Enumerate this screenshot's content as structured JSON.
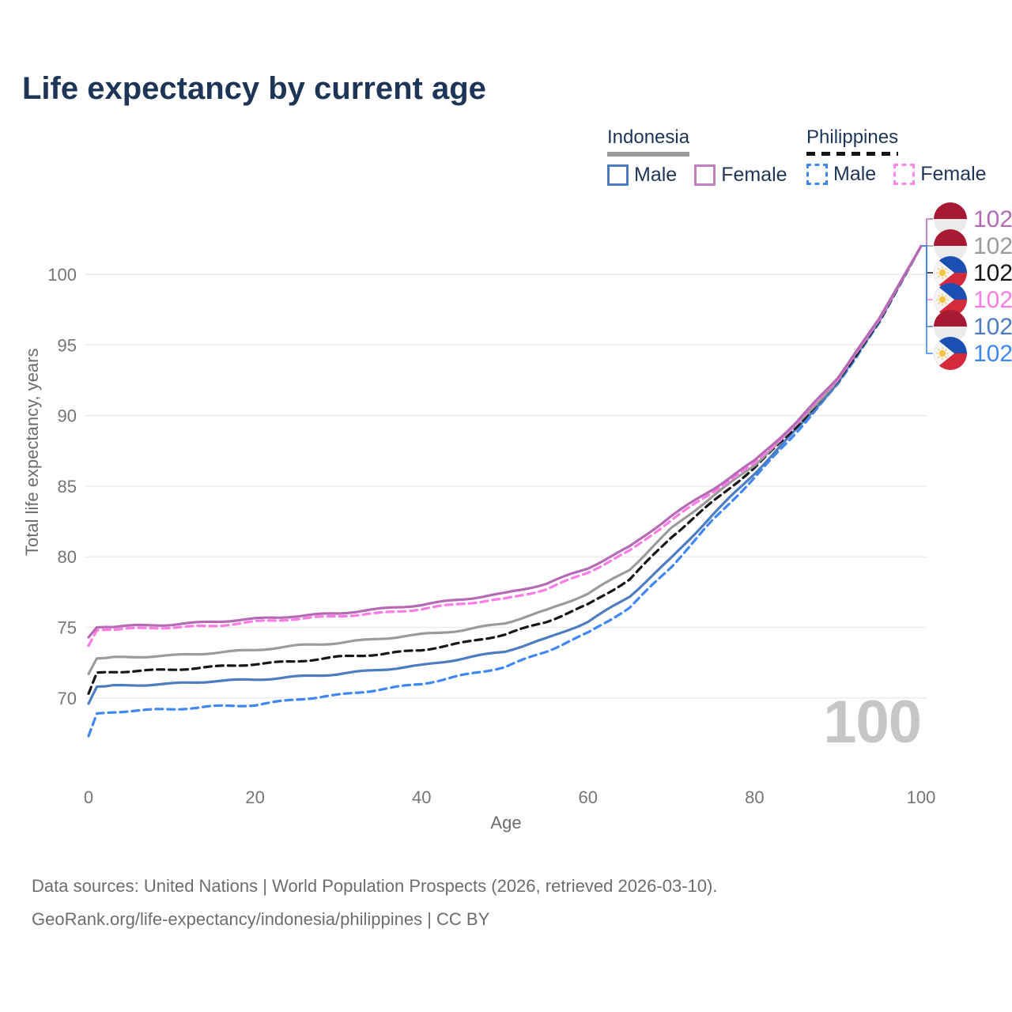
{
  "title": "Life expectancy by current age",
  "legend": {
    "groups": [
      {
        "label": "Indonesia",
        "line_style": "solid",
        "underline_color": "#9a9a9a",
        "items": [
          {
            "label": "Male",
            "color": "#4d7cc1",
            "dash": "solid"
          },
          {
            "label": "Female",
            "color": "#bf7fc0",
            "dash": "solid"
          }
        ]
      },
      {
        "label": "Philippines",
        "line_style": "dashed",
        "underline_color": "#141414",
        "items": [
          {
            "label": "Male",
            "color": "#3f87f5",
            "dash": "dashed"
          },
          {
            "label": "Female",
            "color": "#ff85e8",
            "dash": "dashed"
          }
        ]
      }
    ]
  },
  "footer": {
    "line1": "Data sources: United Nations | World Population Prospects (2026, retrieved 2026-03-10).",
    "line2": "GeoRank.org/life-expectancy/indonesia/philippines | CC BY"
  },
  "chart_data": {
    "type": "line",
    "title": "Life expectancy by current age",
    "xlabel": "Age",
    "ylabel": "Total life expectancy, years",
    "x_ticks": [
      0,
      20,
      40,
      60,
      80,
      100
    ],
    "y_ticks": [
      70,
      75,
      80,
      85,
      90,
      95,
      100
    ],
    "xlim": [
      0,
      100
    ],
    "ylim": [
      66,
      103
    ],
    "grid": "horizontal",
    "hover_age": "100",
    "ages": [
      0,
      1,
      5,
      10,
      15,
      20,
      25,
      30,
      35,
      40,
      45,
      50,
      55,
      60,
      65,
      70,
      75,
      80,
      85,
      90,
      95,
      100
    ],
    "series": [
      {
        "name": "Indonesia Female",
        "country": "Indonesia",
        "sex": "Female",
        "flag": "indonesia",
        "color": "#b46ab4",
        "dash": "solid",
        "end_label": "102",
        "end_row": 0,
        "values": [
          74.3,
          75.0,
          75.1,
          75.2,
          75.4,
          75.6,
          75.8,
          76.0,
          76.3,
          76.6,
          77.0,
          77.4,
          78.1,
          79.2,
          80.7,
          82.9,
          84.8,
          86.8,
          89.5,
          92.7,
          96.9,
          102
        ]
      },
      {
        "name": "Indonesia (both sexes)",
        "country": "Indonesia",
        "sex": "All",
        "flag": "indonesia",
        "color": "#9b9b9b",
        "dash": "solid",
        "end_label": "102",
        "end_row": 1,
        "values": [
          71.7,
          72.8,
          72.9,
          73.0,
          73.2,
          73.4,
          73.7,
          73.9,
          74.2,
          74.5,
          74.8,
          75.3,
          76.2,
          77.4,
          79.1,
          82.0,
          84.3,
          86.5,
          89.3,
          92.5,
          96.8,
          102
        ]
      },
      {
        "name": "Philippines (both sexes)",
        "country": "Philippines",
        "sex": "All",
        "flag": "philippines",
        "color": "#161616",
        "dash": "dashed",
        "end_label": "102",
        "end_row": 2,
        "values": [
          70.3,
          71.8,
          71.9,
          72.0,
          72.2,
          72.4,
          72.6,
          72.9,
          73.1,
          73.4,
          73.9,
          74.5,
          75.4,
          76.6,
          78.4,
          81.4,
          83.9,
          86.3,
          89.2,
          92.4,
          96.7,
          102
        ]
      },
      {
        "name": "Philippines Female",
        "country": "Philippines",
        "sex": "Female",
        "flag": "philippines",
        "color": "#fb7ce4",
        "dash": "dashed",
        "end_label": "102",
        "end_row": 3,
        "values": [
          73.7,
          74.8,
          74.9,
          75.0,
          75.1,
          75.4,
          75.6,
          75.8,
          76.0,
          76.3,
          76.7,
          77.0,
          77.7,
          78.9,
          80.4,
          82.6,
          84.6,
          86.6,
          89.4,
          92.6,
          96.8,
          102
        ]
      },
      {
        "name": "Indonesia Male",
        "country": "Indonesia",
        "sex": "Male",
        "flag": "indonesia",
        "color": "#4d7cc1",
        "dash": "solid",
        "end_label": "102",
        "end_row": 4,
        "values": [
          69.6,
          70.8,
          70.9,
          71.0,
          71.2,
          71.3,
          71.5,
          71.7,
          72.0,
          72.3,
          72.8,
          73.3,
          74.2,
          75.4,
          77.2,
          79.9,
          83.0,
          85.9,
          89.0,
          92.3,
          96.7,
          102
        ]
      },
      {
        "name": "Philippines Male",
        "country": "Philippines",
        "sex": "Male",
        "flag": "philippines",
        "color": "#3f87f5",
        "dash": "dashed",
        "end_label": "102",
        "end_row": 5,
        "values": [
          67.3,
          68.9,
          69.1,
          69.2,
          69.4,
          69.5,
          69.9,
          70.2,
          70.6,
          71.0,
          71.6,
          72.2,
          73.3,
          74.6,
          76.4,
          79.3,
          82.6,
          85.6,
          88.8,
          92.2,
          96.6,
          102
        ]
      }
    ]
  }
}
